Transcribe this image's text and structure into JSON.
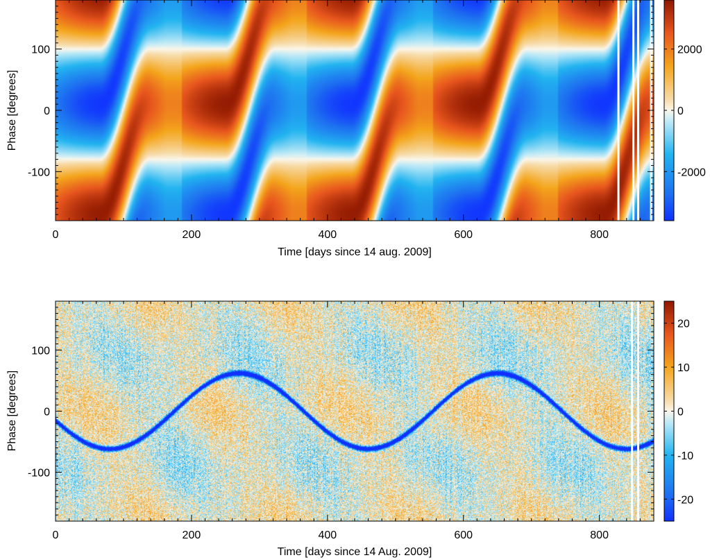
{
  "chart_data": [
    {
      "type": "heatmap",
      "title": "",
      "xlabel": "Time [days since 14 aug. 2009]",
      "ylabel": "Phase [degrees]",
      "xlim": [
        0,
        880
      ],
      "ylim": [
        -180,
        180
      ],
      "x_ticks": [
        0,
        200,
        400,
        600,
        800
      ],
      "x_tick_labels": [
        "0",
        "200",
        "400",
        "600",
        "800"
      ],
      "y_ticks": [
        -100,
        0,
        100
      ],
      "y_tick_labels": [
        "-100",
        "0",
        "100"
      ],
      "colorbar": {
        "range": [
          -3600,
          3600
        ],
        "ticks": [
          -2000,
          0,
          2000
        ],
        "tick_labels": [
          "-2000",
          "0",
          "2000"
        ]
      },
      "pattern": {
        "description": "sinusoidal pattern in phase with alternating positive/negative lobes; phase of maximum drifts with time",
        "amplitude": 3600,
        "half_period_days": 185,
        "white_gaps_days": [
          828,
          850,
          857,
          876
        ]
      }
    },
    {
      "type": "heatmap",
      "title": "",
      "xlabel": "Time [days since 14 Aug. 2009]",
      "ylabel": "Phase [degrees]",
      "xlim": [
        0,
        880
      ],
      "ylim": [
        -180,
        180
      ],
      "x_ticks": [
        0,
        200,
        400,
        600,
        800
      ],
      "x_tick_labels": [
        "0",
        "200",
        "400",
        "600",
        "800"
      ],
      "y_ticks": [
        -100,
        0,
        100
      ],
      "y_tick_labels": [
        "-100",
        "0",
        "100"
      ],
      "colorbar": {
        "range": [
          -25,
          25
        ],
        "ticks": [
          -20,
          -10,
          0,
          10,
          20
        ],
        "tick_labels": [
          "-20",
          "-10",
          "0",
          "10",
          "20"
        ]
      },
      "pattern": {
        "description": "noisy residual field with dark blue S-shaped tracks oscillating between about -62 and +62 degrees",
        "track_amplitude_deg": 62,
        "track_period_days": 380,
        "white_gaps_days": [
          848,
          857
        ]
      }
    }
  ]
}
